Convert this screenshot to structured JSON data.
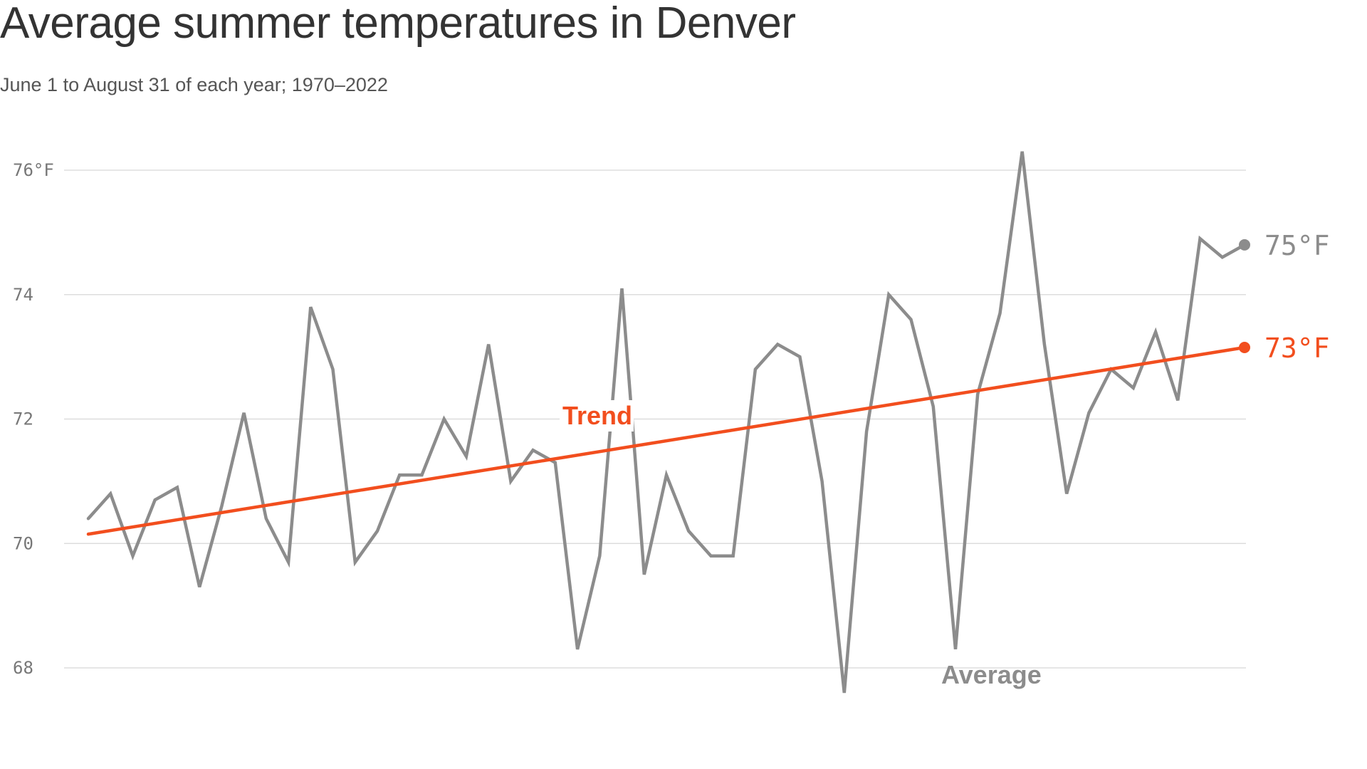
{
  "header": {
    "title": "Average summer temperatures in Denver",
    "subtitle": "June 1 to August 31 of each year; 1970–2022"
  },
  "colors": {
    "average": "#8c8c8c",
    "trend": "#f24e1e",
    "grid": "#dddddd",
    "text": "#333333"
  },
  "chart_data": {
    "type": "line",
    "title": "Average summer temperatures in Denver",
    "subtitle": "June 1 to August 31 of each year; 1970–2022",
    "xlabel": "",
    "ylabel": "",
    "xlim": [
      1970,
      2022
    ],
    "ylim": [
      67.6,
      76.6
    ],
    "grid": true,
    "y_ticks": [
      {
        "value": 76,
        "label": "76°F"
      },
      {
        "value": 74,
        "label": "74"
      },
      {
        "value": 72,
        "label": "72"
      },
      {
        "value": 70,
        "label": "70"
      },
      {
        "value": 68,
        "label": "68"
      }
    ],
    "x": [
      1970,
      1971,
      1972,
      1973,
      1974,
      1975,
      1976,
      1977,
      1978,
      1979,
      1980,
      1981,
      1982,
      1983,
      1984,
      1985,
      1986,
      1987,
      1988,
      1989,
      1990,
      1991,
      1992,
      1993,
      1994,
      1995,
      1996,
      1997,
      1998,
      1999,
      2000,
      2001,
      2002,
      2003,
      2004,
      2005,
      2006,
      2007,
      2008,
      2009,
      2010,
      2011,
      2012,
      2013,
      2014,
      2015,
      2016,
      2017,
      2018,
      2019,
      2020,
      2021,
      2022
    ],
    "series": [
      {
        "name": "Average",
        "label": "Average",
        "end_label": "75°F",
        "values": [
          70.4,
          70.8,
          69.8,
          70.7,
          70.9,
          69.3,
          70.6,
          72.1,
          70.4,
          69.7,
          73.8,
          72.8,
          69.7,
          70.2,
          71.1,
          71.1,
          72.0,
          71.4,
          73.2,
          71.0,
          71.5,
          71.3,
          68.3,
          69.8,
          74.1,
          69.5,
          71.1,
          70.2,
          69.8,
          69.8,
          72.8,
          73.2,
          73.0,
          71.0,
          67.6,
          71.8,
          74.0,
          73.6,
          72.2,
          68.3,
          72.4,
          73.7,
          76.3,
          73.2,
          70.8,
          72.1,
          72.8,
          72.5,
          73.4,
          72.3,
          74.9,
          74.6,
          74.8
        ]
      },
      {
        "name": "Trend",
        "label": "Trend",
        "end_label": "73°F",
        "values": [
          70.15,
          73.15
        ],
        "x": [
          1970,
          2022
        ]
      }
    ]
  }
}
